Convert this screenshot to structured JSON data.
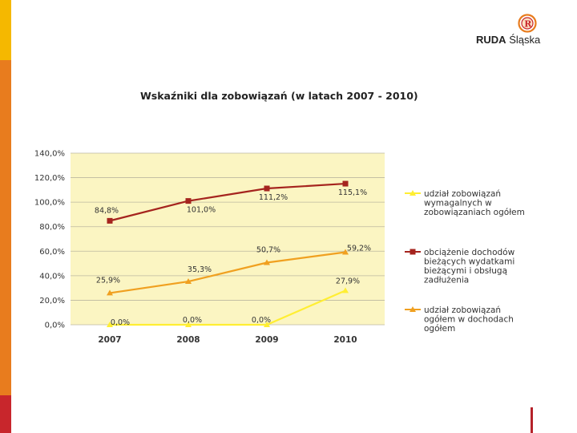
{
  "brand": {
    "name_bold": "RUDA",
    "name_rest": "Śląska"
  },
  "colors": {
    "sidebar_top": "#f5b800",
    "sidebar_mid": "#e87c1e",
    "sidebar_bottom": "#c8262c",
    "plot_bg": "#fbf5c2",
    "accent_rule": "#b5222a",
    "series": [
      "#ffee33",
      "#a5241e",
      "#f0a020"
    ]
  },
  "chart_data": {
    "type": "line",
    "title": "Wskaźniki dla zobowiązań (w latach 2007 - 2010)",
    "categories": [
      "2007",
      "2008",
      "2009",
      "2010"
    ],
    "ylim": [
      0,
      140
    ],
    "yticks": [
      0,
      20,
      40,
      60,
      80,
      100,
      120,
      140
    ],
    "ytick_labels": [
      "0,0%",
      "20,0%",
      "40,0%",
      "60,0%",
      "80,0%",
      "100,0%",
      "120,0%",
      "140,0%"
    ],
    "grid": true,
    "legend_position": "right",
    "series": [
      {
        "name": "udział zobowiązań wymagalnych w zobowiązaniach ogółem",
        "legend_lines": [
          "udział zobowiązań",
          "wymagalnych w",
          "zobowiązaniach ogółem"
        ],
        "marker": "triangle",
        "values": [
          0.0,
          0.0,
          0.0,
          27.9
        ],
        "labels": [
          "0,0%",
          "0,0%",
          "0,0%",
          "27,9%"
        ]
      },
      {
        "name": "obciążenie dochodów bieżących wydatkami bieżącymi i obsługą zadłużenia",
        "legend_lines": [
          "obciążenie dochodów",
          "bieżących wydatkami",
          "bieżącymi i obsługą",
          "zadłużenia"
        ],
        "marker": "square",
        "values": [
          84.8,
          101.0,
          111.2,
          115.1
        ],
        "labels": [
          "84,8%",
          "101,0%",
          "111,2%",
          "115,1%"
        ]
      },
      {
        "name": "udział zobowiązań ogółem w dochodach ogółem",
        "legend_lines": [
          "udział zobowiązań",
          "ogółem w dochodach",
          "ogółem"
        ],
        "marker": "triangle",
        "values": [
          25.9,
          35.3,
          50.7,
          59.2
        ],
        "labels": [
          "25,9%",
          "35,3%",
          "50,7%",
          "59,2%"
        ]
      }
    ]
  }
}
